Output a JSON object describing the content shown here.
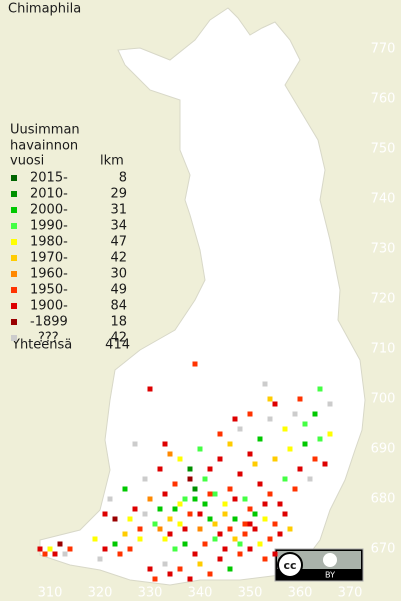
{
  "title": "Chimaphila",
  "legend": {
    "heading": [
      "Uusimman",
      "havainnon",
      "vuosi"
    ],
    "count_heading": "lkm",
    "rows": [
      {
        "label": "2015-",
        "count": 8,
        "color": "#006400"
      },
      {
        "label": "2010-",
        "count": 29,
        "color": "#009000"
      },
      {
        "label": "2000-",
        "count": 31,
        "color": "#00c800"
      },
      {
        "label": "1990-",
        "count": 34,
        "color": "#44ff44"
      },
      {
        "label": "1980-",
        "count": 47,
        "color": "#ffff00"
      },
      {
        "label": "1970-",
        "count": 42,
        "color": "#ffcc00"
      },
      {
        "label": "1960-",
        "count": 30,
        "color": "#ff8800"
      },
      {
        "label": "1950-",
        "count": 49,
        "color": "#ff3300"
      },
      {
        "label": "1900-",
        "count": 84,
        "color": "#dd0000"
      },
      {
        "label": "-1899",
        "count": 18,
        "color": "#990000"
      },
      {
        "label": "???",
        "count": 42,
        "color": "#cccccc"
      }
    ],
    "total_label": "Yhteensä",
    "total": 414
  },
  "north_labels": [
    770,
    760,
    750,
    740,
    730,
    720,
    710,
    700,
    690,
    680,
    670
  ],
  "east_labels": [
    310,
    320,
    330,
    340,
    350,
    360,
    370
  ],
  "records": [
    [
      308,
      670,
      8
    ],
    [
      309,
      669,
      7
    ],
    [
      310,
      670,
      4
    ],
    [
      311,
      669,
      8
    ],
    [
      312,
      671,
      9
    ],
    [
      313,
      669,
      10
    ],
    [
      314,
      670,
      7
    ],
    [
      319,
      672,
      4
    ],
    [
      320,
      668,
      10
    ],
    [
      321,
      670,
      8
    ],
    [
      323,
      671,
      2
    ],
    [
      324,
      669,
      7
    ],
    [
      325,
      673,
      5
    ],
    [
      326,
      676,
      4
    ],
    [
      327,
      678,
      8
    ],
    [
      328,
      674,
      7
    ],
    [
      329,
      677,
      10
    ],
    [
      330,
      680,
      6
    ],
    [
      331,
      675,
      3
    ],
    [
      332,
      678,
      2
    ],
    [
      333,
      681,
      8
    ],
    [
      334,
      676,
      5
    ],
    [
      335,
      683,
      7
    ],
    [
      336,
      679,
      4
    ],
    [
      337,
      674,
      8
    ],
    [
      338,
      686,
      1
    ],
    [
      339,
      680,
      2
    ],
    [
      340,
      677,
      8
    ],
    [
      341,
      684,
      3
    ],
    [
      342,
      681,
      7
    ],
    [
      343,
      675,
      5
    ],
    [
      344,
      688,
      8
    ],
    [
      345,
      679,
      4
    ],
    [
      346,
      682,
      7
    ],
    [
      347,
      676,
      2
    ],
    [
      348,
      685,
      8
    ],
    [
      349,
      680,
      3
    ],
    [
      350,
      678,
      7
    ],
    [
      351,
      687,
      5
    ],
    [
      352,
      683,
      8
    ],
    [
      353,
      676,
      4
    ],
    [
      354,
      681,
      7
    ],
    [
      355,
      688,
      5
    ],
    [
      356,
      679,
      8
    ],
    [
      357,
      684,
      3
    ],
    [
      358,
      690,
      4
    ],
    [
      359,
      682,
      7
    ],
    [
      360,
      686,
      8
    ],
    [
      361,
      691,
      2
    ],
    [
      362,
      684,
      10
    ],
    [
      363,
      688,
      7
    ],
    [
      364,
      692,
      3
    ],
    [
      365,
      687,
      8
    ],
    [
      366,
      693,
      4
    ],
    [
      330,
      666,
      8
    ],
    [
      331,
      664,
      7
    ],
    [
      333,
      667,
      10
    ],
    [
      334,
      665,
      8
    ],
    [
      336,
      666,
      7
    ],
    [
      338,
      664,
      8
    ],
    [
      340,
      667,
      5
    ],
    [
      342,
      665,
      7
    ],
    [
      344,
      668,
      8
    ],
    [
      346,
      666,
      2
    ],
    [
      348,
      669,
      7
    ],
    [
      350,
      670,
      8
    ],
    [
      352,
      671,
      4
    ],
    [
      354,
      672,
      7
    ],
    [
      356,
      673,
      8
    ],
    [
      358,
      674,
      5
    ],
    [
      329,
      684,
      10
    ],
    [
      332,
      686,
      8
    ],
    [
      334,
      689,
      6
    ],
    [
      336,
      688,
      4
    ],
    [
      338,
      684,
      9
    ],
    [
      340,
      690,
      3
    ],
    [
      342,
      686,
      8
    ],
    [
      344,
      693,
      7
    ],
    [
      346,
      691,
      5
    ],
    [
      348,
      694,
      10
    ],
    [
      350,
      689,
      8
    ],
    [
      352,
      692,
      2
    ],
    [
      354,
      696,
      10
    ],
    [
      355,
      699,
      8
    ],
    [
      357,
      694,
      4
    ],
    [
      359,
      697,
      10
    ],
    [
      360,
      700,
      7
    ],
    [
      361,
      695,
      3
    ],
    [
      363,
      697,
      2
    ],
    [
      364,
      702,
      3
    ],
    [
      366,
      699,
      10
    ],
    [
      354,
      700,
      5
    ],
    [
      350,
      697,
      7
    ],
    [
      347,
      696,
      8
    ],
    [
      353,
      703,
      10
    ],
    [
      333,
      691,
      8
    ],
    [
      327,
      691,
      10
    ],
    [
      325,
      682,
      2
    ],
    [
      322,
      680,
      10
    ],
    [
      323,
      676,
      9
    ],
    [
      321,
      677,
      8
    ],
    [
      339,
      707,
      7
    ],
    [
      330,
      702,
      8
    ],
    [
      335,
      678,
      2
    ],
    [
      337,
      680,
      3
    ],
    [
      339,
      682,
      1
    ],
    [
      341,
      679,
      2
    ],
    [
      343,
      681,
      3
    ],
    [
      345,
      677,
      5
    ],
    [
      347,
      680,
      8
    ],
    [
      349,
      675,
      7
    ],
    [
      351,
      677,
      2
    ],
    [
      353,
      679,
      8
    ],
    [
      355,
      675,
      7
    ],
    [
      357,
      677,
      8
    ],
    [
      333,
      672,
      4
    ],
    [
      335,
      670,
      3
    ],
    [
      337,
      671,
      2
    ],
    [
      339,
      669,
      8
    ],
    [
      341,
      671,
      7
    ],
    [
      343,
      672,
      3
    ],
    [
      345,
      670,
      8
    ],
    [
      347,
      672,
      5
    ],
    [
      349,
      673,
      7
    ],
    [
      351,
      674,
      8
    ],
    [
      353,
      668,
      7
    ],
    [
      355,
      669,
      8
    ],
    [
      326,
      670,
      7
    ],
    [
      328,
      672,
      4
    ],
    [
      332,
      674,
      6
    ],
    [
      334,
      673,
      8
    ],
    [
      336,
      675,
      4
    ],
    [
      338,
      677,
      7
    ],
    [
      340,
      674,
      6
    ],
    [
      342,
      676,
      2
    ],
    [
      344,
      673,
      8
    ],
    [
      346,
      674,
      7
    ],
    [
      348,
      671,
      3
    ],
    [
      350,
      675,
      8
    ]
  ]
}
